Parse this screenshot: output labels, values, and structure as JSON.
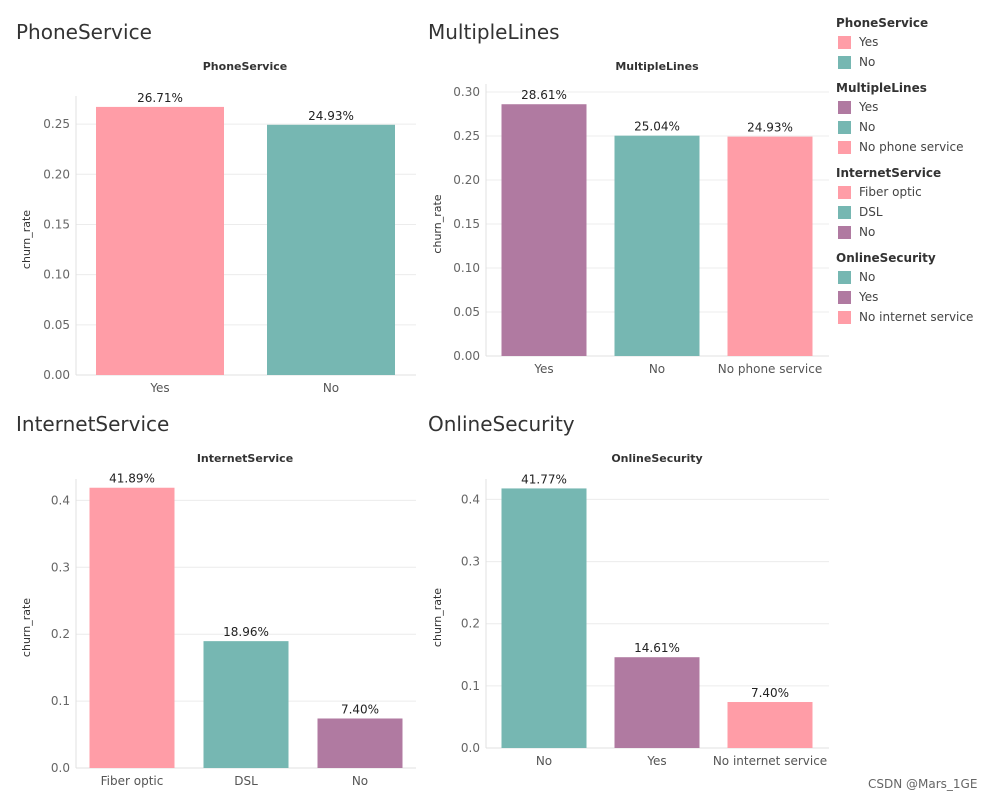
{
  "colors": {
    "pink": "#ff9da7",
    "teal": "#76b7b2",
    "purple": "#b07aa1"
  },
  "chart_data": [
    {
      "type": "bar",
      "title": "PhoneService",
      "subtitle": "PhoneService",
      "ylabel": "churn_rate",
      "categories": [
        "Yes",
        "No"
      ],
      "values": [
        0.2671,
        0.2493
      ],
      "data_labels": [
        "26.71%",
        "24.93%"
      ],
      "colors": [
        "#ff9da7",
        "#76b7b2"
      ],
      "ylim": [
        0,
        0.27
      ],
      "yticks": [
        0.0,
        0.05,
        0.1,
        0.15,
        0.2,
        0.25
      ],
      "ytick_labels": [
        "0.00",
        "0.05",
        "0.10",
        "0.15",
        "0.20",
        "0.25"
      ],
      "grid": true
    },
    {
      "type": "bar",
      "title": "MultipleLines",
      "subtitle": "MultipleLines",
      "ylabel": "churn_rate",
      "categories": [
        "Yes",
        "No",
        "No phone service"
      ],
      "values": [
        0.2861,
        0.2504,
        0.2493
      ],
      "data_labels": [
        "28.61%",
        "25.04%",
        "24.93%"
      ],
      "colors": [
        "#b07aa1",
        "#76b7b2",
        "#ff9da7"
      ],
      "ylim": [
        0,
        0.3
      ],
      "yticks": [
        0.0,
        0.05,
        0.1,
        0.15,
        0.2,
        0.25,
        0.3
      ],
      "ytick_labels": [
        "0.00",
        "0.05",
        "0.10",
        "0.15",
        "0.20",
        "0.25",
        "0.30"
      ],
      "grid": true
    },
    {
      "type": "bar",
      "title": "InternetService",
      "subtitle": "InternetService",
      "ylabel": "churn_rate",
      "categories": [
        "Fiber optic",
        "DSL",
        "No"
      ],
      "values": [
        0.4189,
        0.1896,
        0.074
      ],
      "data_labels": [
        "41.89%",
        "18.96%",
        "7.40%"
      ],
      "colors": [
        "#ff9da7",
        "#76b7b2",
        "#b07aa1"
      ],
      "ylim": [
        0,
        0.42
      ],
      "yticks": [
        0.0,
        0.1,
        0.2,
        0.3,
        0.4
      ],
      "ytick_labels": [
        "0.0",
        "0.1",
        "0.2",
        "0.3",
        "0.4"
      ],
      "grid": true
    },
    {
      "type": "bar",
      "title": "OnlineSecurity",
      "subtitle": "OnlineSecurity",
      "ylabel": "churn_rate",
      "categories": [
        "No",
        "Yes",
        "No internet service"
      ],
      "values": [
        0.4177,
        0.1461,
        0.074
      ],
      "data_labels": [
        "41.77%",
        "14.61%",
        "7.40%"
      ],
      "colors": [
        "#76b7b2",
        "#b07aa1",
        "#ff9da7"
      ],
      "ylim": [
        0,
        0.42
      ],
      "yticks": [
        0.0,
        0.1,
        0.2,
        0.3,
        0.4
      ],
      "ytick_labels": [
        "0.0",
        "0.1",
        "0.2",
        "0.3",
        "0.4"
      ],
      "grid": true
    }
  ],
  "legend": {
    "placement": "right",
    "groups": [
      {
        "title": "PhoneService",
        "items": [
          {
            "label": "Yes",
            "color": "#ff9da7"
          },
          {
            "label": "No",
            "color": "#76b7b2"
          }
        ]
      },
      {
        "title": "MultipleLines",
        "items": [
          {
            "label": "Yes",
            "color": "#b07aa1"
          },
          {
            "label": "No",
            "color": "#76b7b2"
          },
          {
            "label": "No phone service",
            "color": "#ff9da7"
          }
        ]
      },
      {
        "title": "InternetService",
        "items": [
          {
            "label": "Fiber optic",
            "color": "#ff9da7"
          },
          {
            "label": "DSL",
            "color": "#76b7b2"
          },
          {
            "label": "No",
            "color": "#b07aa1"
          }
        ]
      },
      {
        "title": "OnlineSecurity",
        "items": [
          {
            "label": "No",
            "color": "#76b7b2"
          },
          {
            "label": "Yes",
            "color": "#b07aa1"
          },
          {
            "label": "No internet service",
            "color": "#ff9da7"
          }
        ]
      }
    ]
  },
  "watermark": "CSDN @Mars_1GE"
}
